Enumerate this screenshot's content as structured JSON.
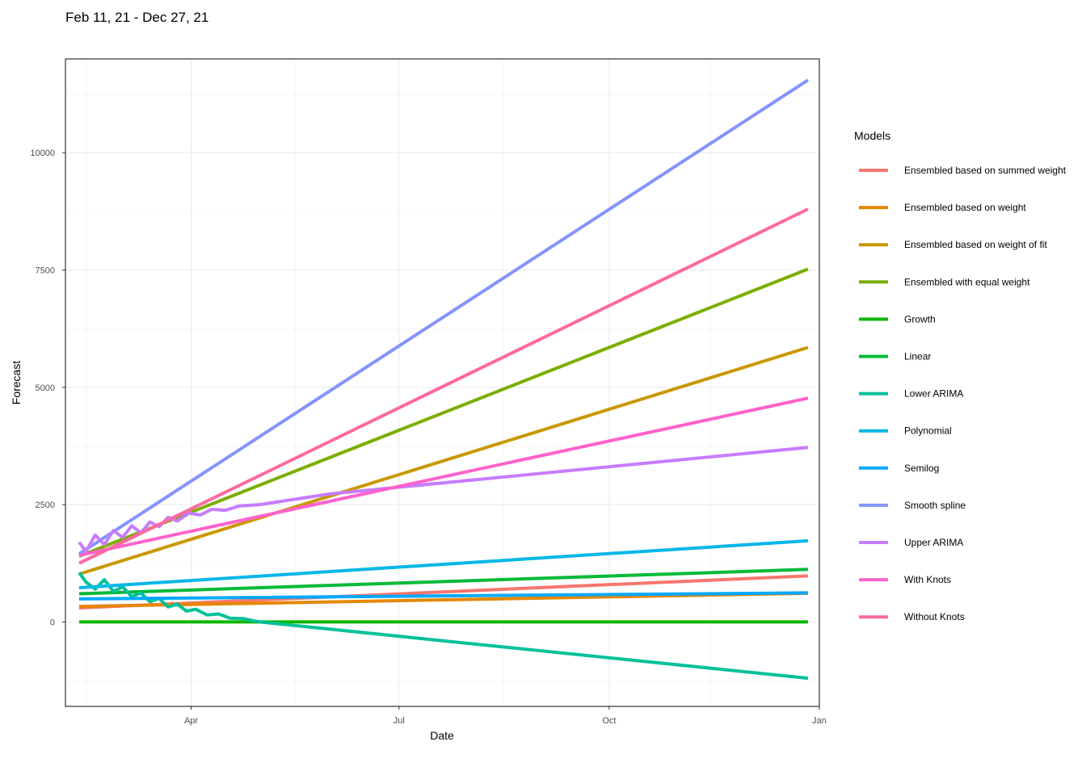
{
  "chart_data": {
    "type": "line",
    "subtitle": "Feb 11, 21 - Dec 27, 21",
    "xlabel": "Date",
    "ylabel": "Forecast",
    "x_range": [
      "2021-02-05",
      "2022-01-01"
    ],
    "x_ticks": [
      {
        "date": "2021-04-01",
        "label": "Apr"
      },
      {
        "date": "2021-07-01",
        "label": "Jul"
      },
      {
        "date": "2021-10-01",
        "label": "Oct"
      },
      {
        "date": "2022-01-01",
        "label": "Jan"
      }
    ],
    "ylim": [
      -1800,
      12000
    ],
    "y_ticks": [
      0,
      2500,
      5000,
      7500,
      10000
    ],
    "grid": true,
    "legend_title": "Models",
    "legend_position": "right",
    "series": [
      {
        "name": "Ensembled based on summed weight",
        "color": "#F8766D",
        "points": [
          [
            "2021-02-11",
            300
          ],
          [
            "2021-12-27",
            980
          ]
        ]
      },
      {
        "name": "Ensembled based on weight",
        "color": "#E58700",
        "points": [
          [
            "2021-02-11",
            330
          ],
          [
            "2021-12-27",
            610
          ]
        ]
      },
      {
        "name": "Ensembled based on weight of fit",
        "color": "#C99800",
        "points": [
          [
            "2021-02-11",
            1020
          ],
          [
            "2021-12-27",
            5850
          ]
        ]
      },
      {
        "name": "Ensembled with equal weight",
        "color": "#7CAE00",
        "points": [
          [
            "2021-02-11",
            1400
          ],
          [
            "2021-12-27",
            7520
          ]
        ]
      },
      {
        "name": "Growth",
        "color": "#0CB702",
        "points": [
          [
            "2021-02-11",
            0
          ],
          [
            "2021-12-27",
            0
          ]
        ]
      },
      {
        "name": "Linear",
        "color": "#00BA38",
        "points": [
          [
            "2021-02-11",
            600
          ],
          [
            "2021-12-27",
            1120
          ]
        ]
      },
      {
        "name": "Lower ARIMA",
        "color": "#00C19A",
        "points": [
          [
            "2021-02-11",
            1050
          ],
          [
            "2021-02-14",
            850
          ],
          [
            "2021-02-18",
            700
          ],
          [
            "2021-02-22",
            900
          ],
          [
            "2021-02-26",
            650
          ],
          [
            "2021-03-02",
            750
          ],
          [
            "2021-03-06",
            540
          ],
          [
            "2021-03-10",
            620
          ],
          [
            "2021-03-14",
            430
          ],
          [
            "2021-03-18",
            500
          ],
          [
            "2021-03-22",
            320
          ],
          [
            "2021-03-26",
            380
          ],
          [
            "2021-03-30",
            230
          ],
          [
            "2021-04-03",
            270
          ],
          [
            "2021-04-08",
            150
          ],
          [
            "2021-04-13",
            170
          ],
          [
            "2021-04-18",
            80
          ],
          [
            "2021-04-24",
            70
          ],
          [
            "2021-05-01",
            0
          ],
          [
            "2021-12-27",
            -1200
          ]
        ]
      },
      {
        "name": "Polynomial",
        "color": "#00B8E7",
        "points": [
          [
            "2021-02-11",
            730
          ],
          [
            "2021-12-27",
            1730
          ]
        ]
      },
      {
        "name": "Semilog",
        "color": "#00A9FF",
        "points": [
          [
            "2021-02-11",
            490
          ],
          [
            "2021-12-27",
            620
          ]
        ]
      },
      {
        "name": "Smooth spline",
        "color": "#8494FF",
        "points": [
          [
            "2021-02-11",
            1450
          ],
          [
            "2021-12-27",
            11550
          ]
        ]
      },
      {
        "name": "Upper ARIMA",
        "color": "#C77CFF",
        "points": [
          [
            "2021-02-11",
            1700
          ],
          [
            "2021-02-14",
            1500
          ],
          [
            "2021-02-18",
            1850
          ],
          [
            "2021-02-22",
            1650
          ],
          [
            "2021-02-26",
            1950
          ],
          [
            "2021-03-02",
            1800
          ],
          [
            "2021-03-06",
            2050
          ],
          [
            "2021-03-10",
            1900
          ],
          [
            "2021-03-14",
            2130
          ],
          [
            "2021-03-18",
            2030
          ],
          [
            "2021-03-22",
            2230
          ],
          [
            "2021-03-26",
            2150
          ],
          [
            "2021-03-31",
            2320
          ],
          [
            "2021-04-05",
            2280
          ],
          [
            "2021-04-10",
            2400
          ],
          [
            "2021-04-16",
            2380
          ],
          [
            "2021-04-22",
            2470
          ],
          [
            "2021-05-01",
            2500
          ],
          [
            "2021-06-01",
            2730
          ],
          [
            "2021-12-27",
            3720
          ]
        ]
      },
      {
        "name": "With Knots",
        "color": "#FF61CC",
        "points": [
          [
            "2021-02-11",
            1420
          ],
          [
            "2021-12-27",
            4770
          ]
        ]
      },
      {
        "name": "Without Knots",
        "color": "#FF68A1",
        "points": [
          [
            "2021-02-11",
            1250
          ],
          [
            "2021-12-27",
            8800
          ]
        ]
      }
    ]
  }
}
